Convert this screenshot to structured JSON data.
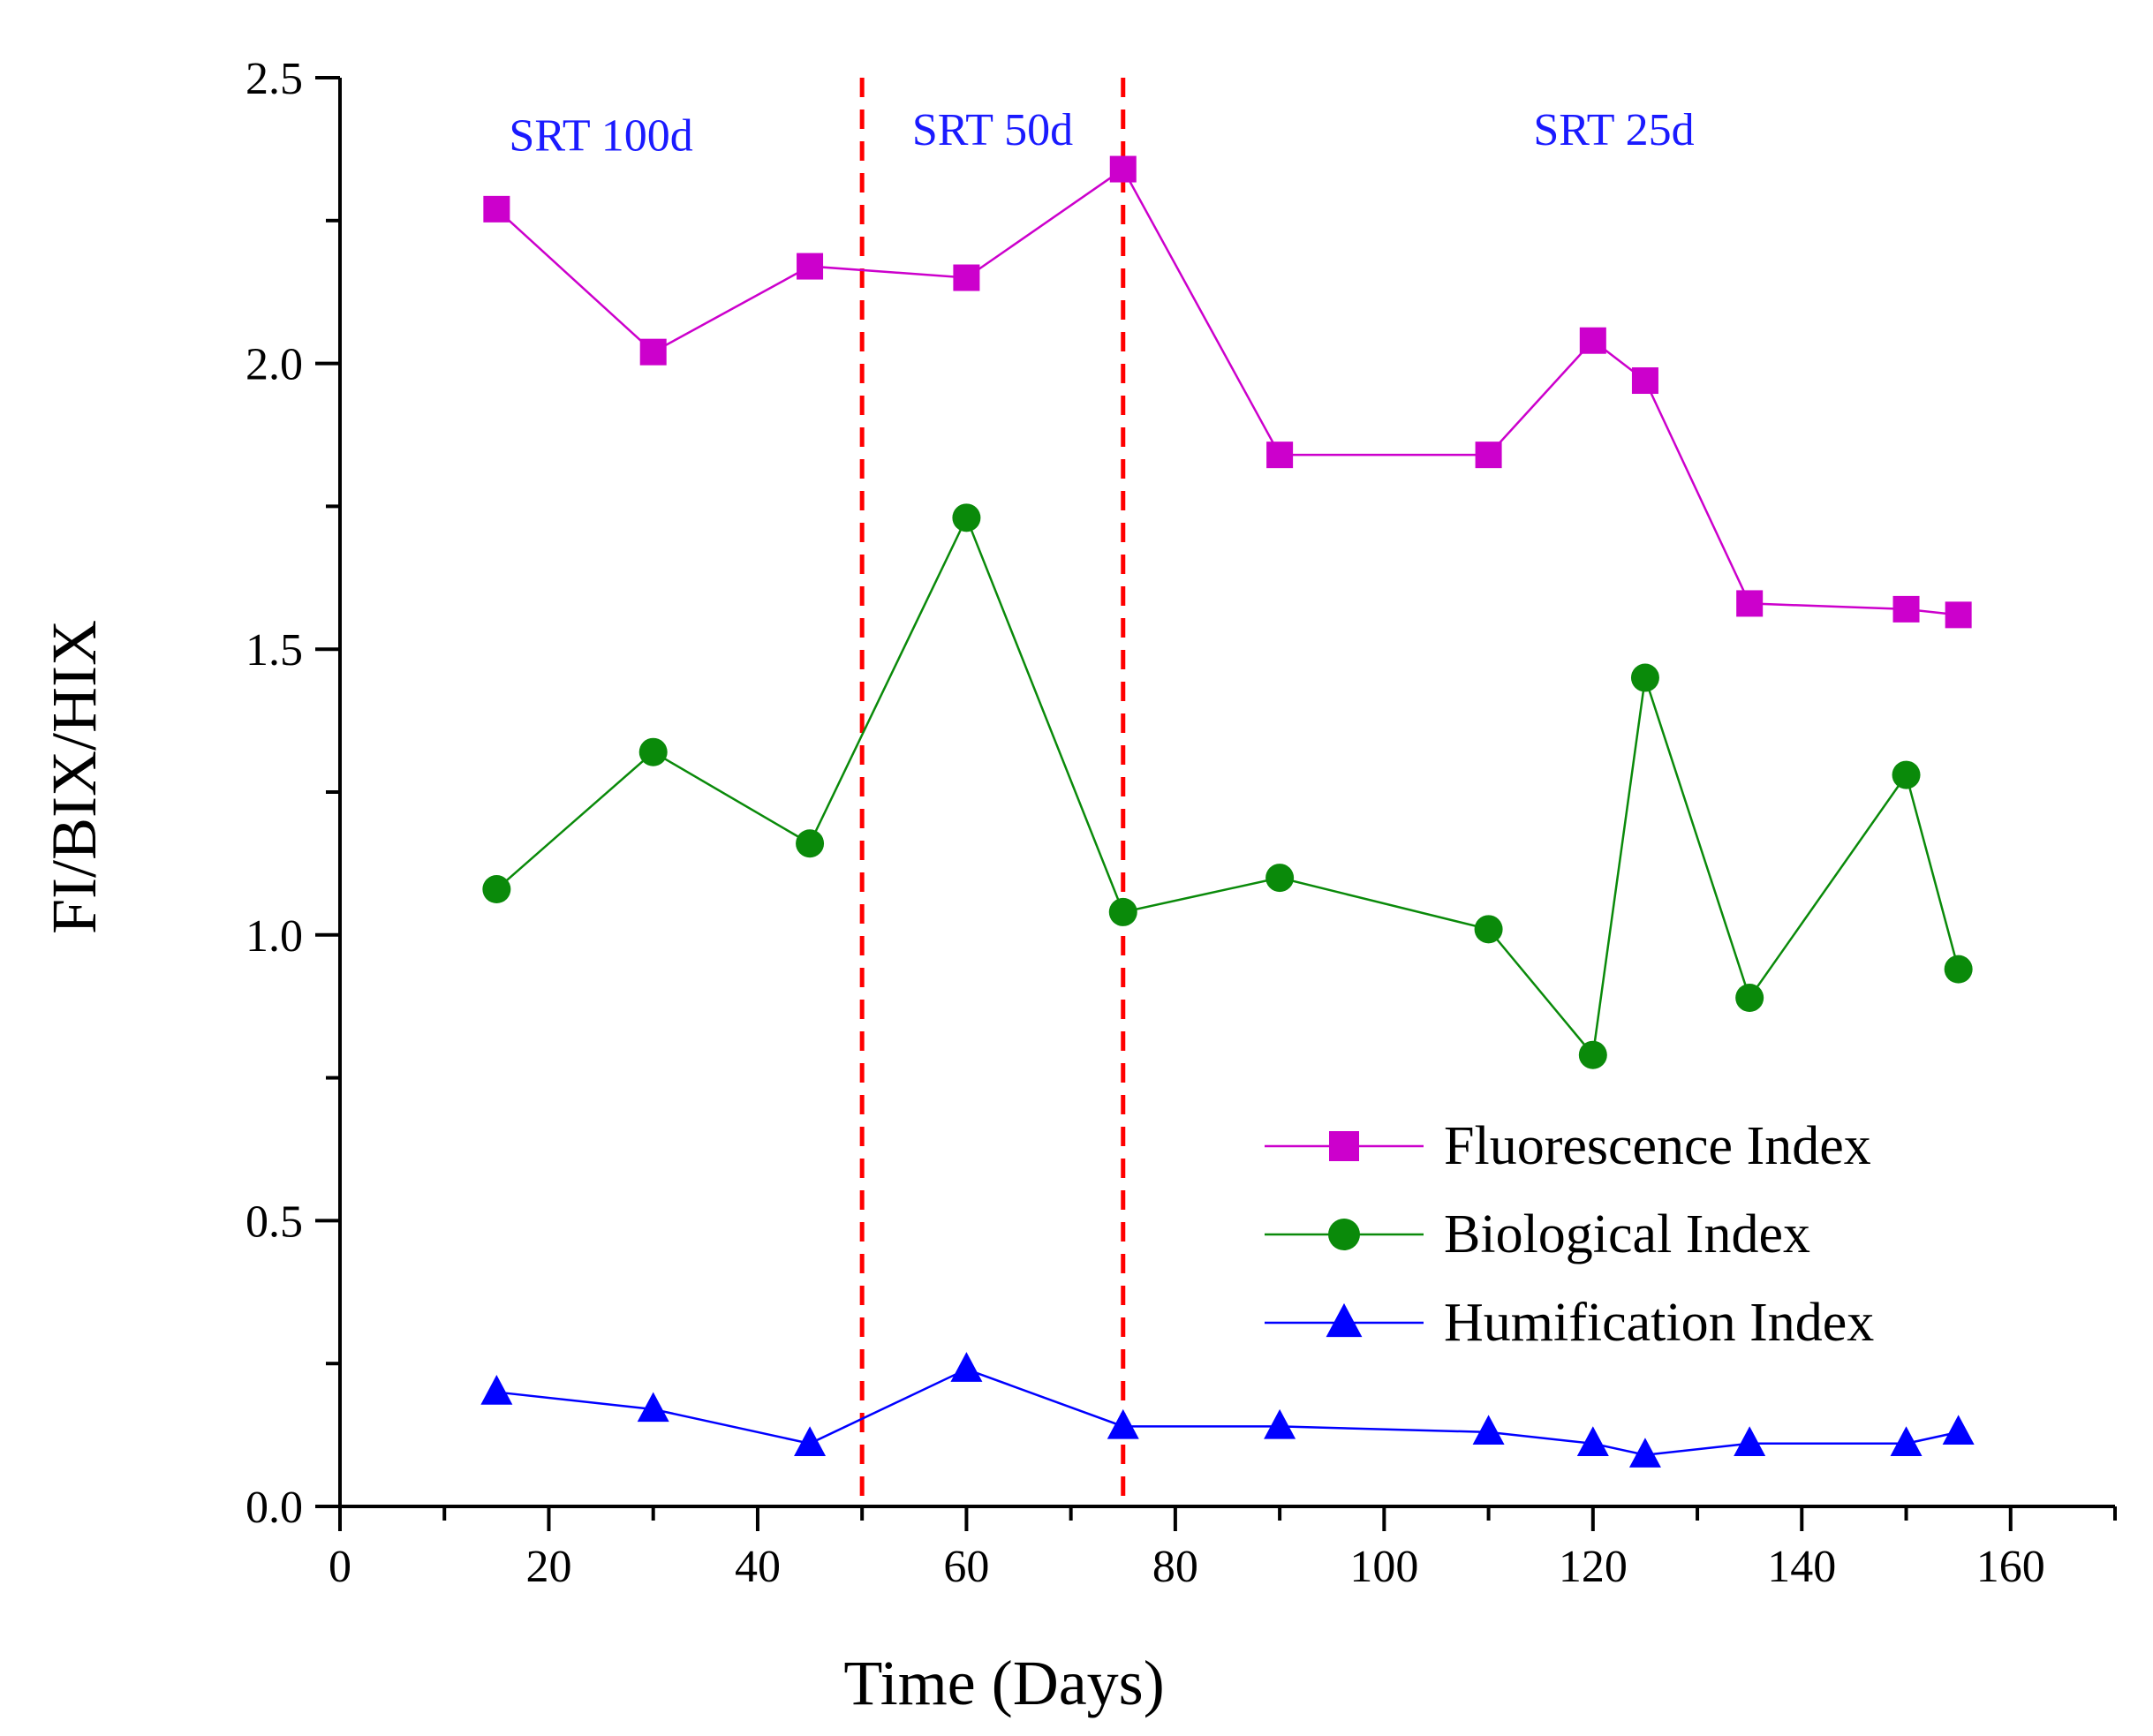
{
  "chart_data": {
    "type": "line",
    "title": "",
    "xlabel": "Time (Days)",
    "ylabel": "FI/BIX/HIX",
    "xlim": [
      0,
      170
    ],
    "ylim": [
      0,
      2.5
    ],
    "x_ticks": [
      0,
      20,
      40,
      60,
      80,
      100,
      120,
      140,
      160
    ],
    "x_tick_labels": [
      "0",
      "20",
      "40",
      "60",
      "80",
      "100",
      "120",
      "140",
      "160"
    ],
    "y_ticks": [
      0,
      0.5,
      1.0,
      1.5,
      2.0,
      2.5
    ],
    "y_tick_labels": [
      "0.0",
      "0.5",
      "1.0",
      "1.5",
      "2.0",
      "2.5"
    ],
    "x": [
      15,
      30,
      45,
      60,
      75,
      90,
      110,
      120,
      125,
      135,
      150,
      155
    ],
    "series": [
      {
        "name": "Fluorescence Index",
        "color": "#cc00cc",
        "marker": "square",
        "values": [
          2.27,
          2.02,
          2.17,
          2.15,
          2.34,
          1.84,
          1.84,
          2.04,
          1.97,
          1.58,
          1.57,
          1.56
        ]
      },
      {
        "name": "Biological Index",
        "color": "#0a8a0a",
        "marker": "circle",
        "values": [
          1.08,
          1.32,
          1.16,
          1.73,
          1.04,
          1.1,
          1.01,
          0.79,
          1.45,
          0.89,
          1.28,
          0.94
        ]
      },
      {
        "name": "Humification Index",
        "color": "#0000ff",
        "marker": "triangle",
        "values": [
          0.2,
          0.17,
          0.11,
          0.24,
          0.14,
          0.14,
          0.13,
          0.11,
          0.09,
          0.11,
          0.11,
          0.13
        ]
      }
    ],
    "reference_lines": [
      {
        "x": 50,
        "color": "#ff0000",
        "style": "dashed"
      },
      {
        "x": 75,
        "color": "#ff0000",
        "style": "dashed"
      }
    ],
    "annotations": [
      {
        "text": "SRT 100d",
        "x": 25,
        "y": 2.4
      },
      {
        "text": "SRT 50d",
        "x": 62.5,
        "y": 2.41
      },
      {
        "text": "SRT 25d",
        "x": 122,
        "y": 2.41
      }
    ],
    "annotation_color": "#1a1aff",
    "legend_position": "lower-right"
  }
}
